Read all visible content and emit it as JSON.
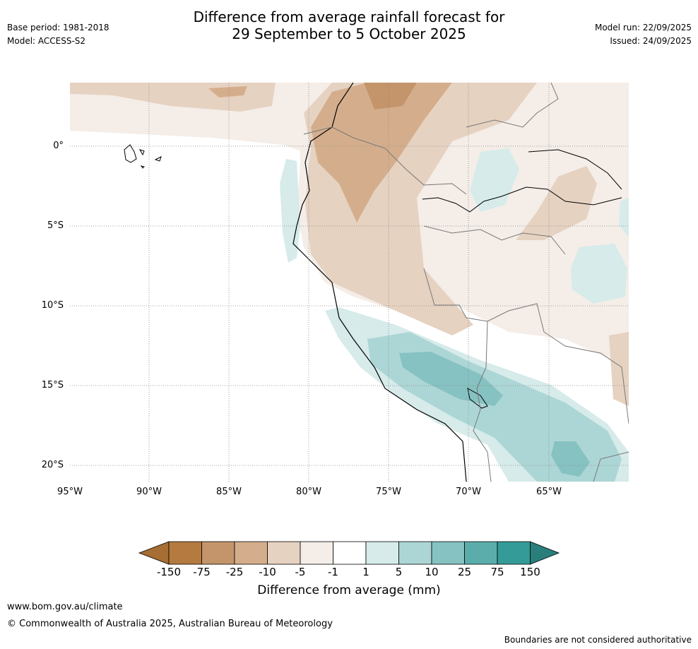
{
  "header": {
    "title_line1": "Difference from average rainfall forecast for",
    "title_line2": "29 September to 5 October 2025",
    "base_period": "Base period: 1981-2018",
    "model": "Model: ACCESS-S2",
    "model_run": "Model run: 22/09/2025",
    "issued": "Issued: 24/09/2025"
  },
  "map": {
    "lat_labels": [
      "0°",
      "5°S",
      "10°S",
      "15°S",
      "20°S"
    ],
    "lon_labels": [
      "95°W",
      "90°W",
      "85°W",
      "80°W",
      "75°W",
      "70°W",
      "65°W"
    ]
  },
  "colorbar": {
    "title": "Difference from average (mm)",
    "ticks": [
      "-150",
      "-75",
      "-25",
      "-10",
      "-5",
      "-1",
      "1",
      "5",
      "10",
      "25",
      "75",
      "150"
    ],
    "colors": [
      "#a66e33",
      "#b57a40",
      "#c4946a",
      "#d4ae8c",
      "#e6d2c1",
      "#f4ede8",
      "#ffffff",
      "#d6ebea",
      "#acd6d5",
      "#85c2c1",
      "#5aadab",
      "#349b98",
      "#2a7f7c"
    ]
  },
  "footer": {
    "url": "www.bom.gov.au/climate",
    "copyright": "© Commonwealth of Australia 2025, Australian Bureau of Meteorology",
    "disclaimer": "Boundaries are not considered authoritative"
  }
}
